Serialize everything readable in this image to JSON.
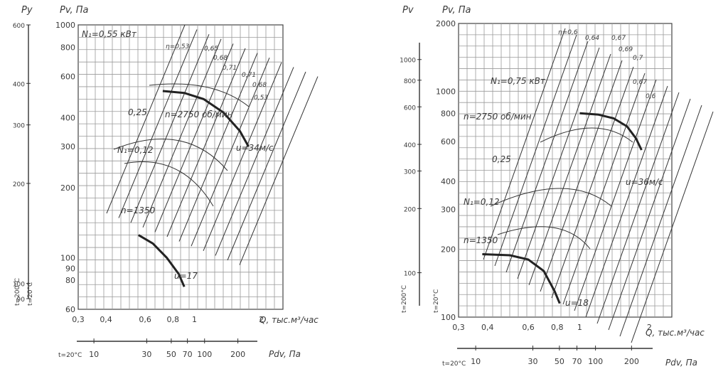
{
  "charts": [
    {
      "id": "left",
      "ylabel": "Pv, Па",
      "aux_y_label": "Py",
      "xlabel": "Q, тыс.м³/час",
      "dyn_label": "Pdv, Па",
      "dyn_temp": "t=20°C",
      "temp_labels": [
        "t=200°C",
        "t=20°C"
      ],
      "y_ticks": [
        "1000",
        "800",
        "600",
        "400",
        "300",
        "200",
        "100",
        "90",
        "80",
        "60"
      ],
      "x_ticks": [
        "0,3",
        "0,4",
        "0,6",
        "0,8",
        "1",
        "2"
      ],
      "dyn_ticks": [
        "10",
        "30",
        "50",
        "70",
        "100",
        "200"
      ],
      "aux_ticks": [
        "600",
        "400",
        "300",
        "200",
        "100",
        "90"
      ],
      "annotations": {
        "power_max": "N₁=0,55 кВт",
        "power_mid": "0,25",
        "power_low": "N₁=0,12",
        "speed_high": "n=2750 об/мин",
        "speed_low": "n=1350",
        "vel_high": "u=34м/с",
        "vel_low": "u=17",
        "eta": [
          "η=0,53",
          "0,65",
          "0,68",
          "0,71",
          "0,71",
          "0,68",
          "0,53"
        ]
      }
    },
    {
      "id": "right",
      "ylabel": "Pv, Па",
      "aux_y_label": "Pv",
      "xlabel": "Q, тыс.м³/час",
      "dyn_label": "Pdv, Па",
      "dyn_temp": "t=20°C",
      "temp_labels": [
        "t=200°C",
        "t=20°C"
      ],
      "y_ticks": [
        "2000",
        "1000",
        "800",
        "600",
        "400",
        "300",
        "200",
        "100"
      ],
      "x_ticks": [
        "0,3",
        "0,4",
        "0,6",
        "0,8",
        "1",
        "2"
      ],
      "dyn_ticks": [
        "10",
        "30",
        "50",
        "70",
        "100",
        "200"
      ],
      "aux_ticks": [
        "1000",
        "800",
        "600",
        "400",
        "300",
        "200",
        "100"
      ],
      "annotations": {
        "power_max": "N₁=0,75 кВт",
        "power_mid": "0,25",
        "power_low": "N₁=0,12",
        "speed_high": "n=2750 об/мин",
        "speed_low": "n=1350",
        "vel_high": "u=36м/с",
        "vel_low": "u=18",
        "eta": [
          "η=0,6",
          "0,64",
          "0,67",
          "0,69",
          "0,7",
          "0,67",
          "0,6"
        ]
      }
    }
  ],
  "chart_data": [
    {
      "type": "line",
      "x_scale": "log",
      "y_scale": "log",
      "xlim": [
        0.3,
        2.5
      ],
      "ylim": [
        60,
        1000
      ],
      "series": [
        {
          "name": "n=2750 об/мин",
          "x": [
            0.72,
            0.9,
            1.1,
            1.35,
            1.6,
            1.75
          ],
          "y": [
            520,
            510,
            480,
            420,
            350,
            300
          ]
        },
        {
          "name": "n=1350",
          "x": [
            0.56,
            0.65,
            0.75,
            0.85,
            0.9
          ],
          "y": [
            125,
            115,
            100,
            85,
            75
          ]
        }
      ]
    },
    {
      "type": "line",
      "x_scale": "log",
      "y_scale": "log",
      "xlim": [
        0.3,
        2.5
      ],
      "ylim": [
        100,
        2000
      ],
      "series": [
        {
          "name": "n=2750 об/мин",
          "x": [
            1.0,
            1.2,
            1.4,
            1.6,
            1.75,
            1.85
          ],
          "y": [
            800,
            790,
            760,
            700,
            620,
            550
          ]
        },
        {
          "name": "n=1350",
          "x": [
            0.38,
            0.5,
            0.6,
            0.7,
            0.78,
            0.82
          ],
          "y": [
            190,
            188,
            180,
            160,
            130,
            115
          ]
        }
      ]
    }
  ]
}
